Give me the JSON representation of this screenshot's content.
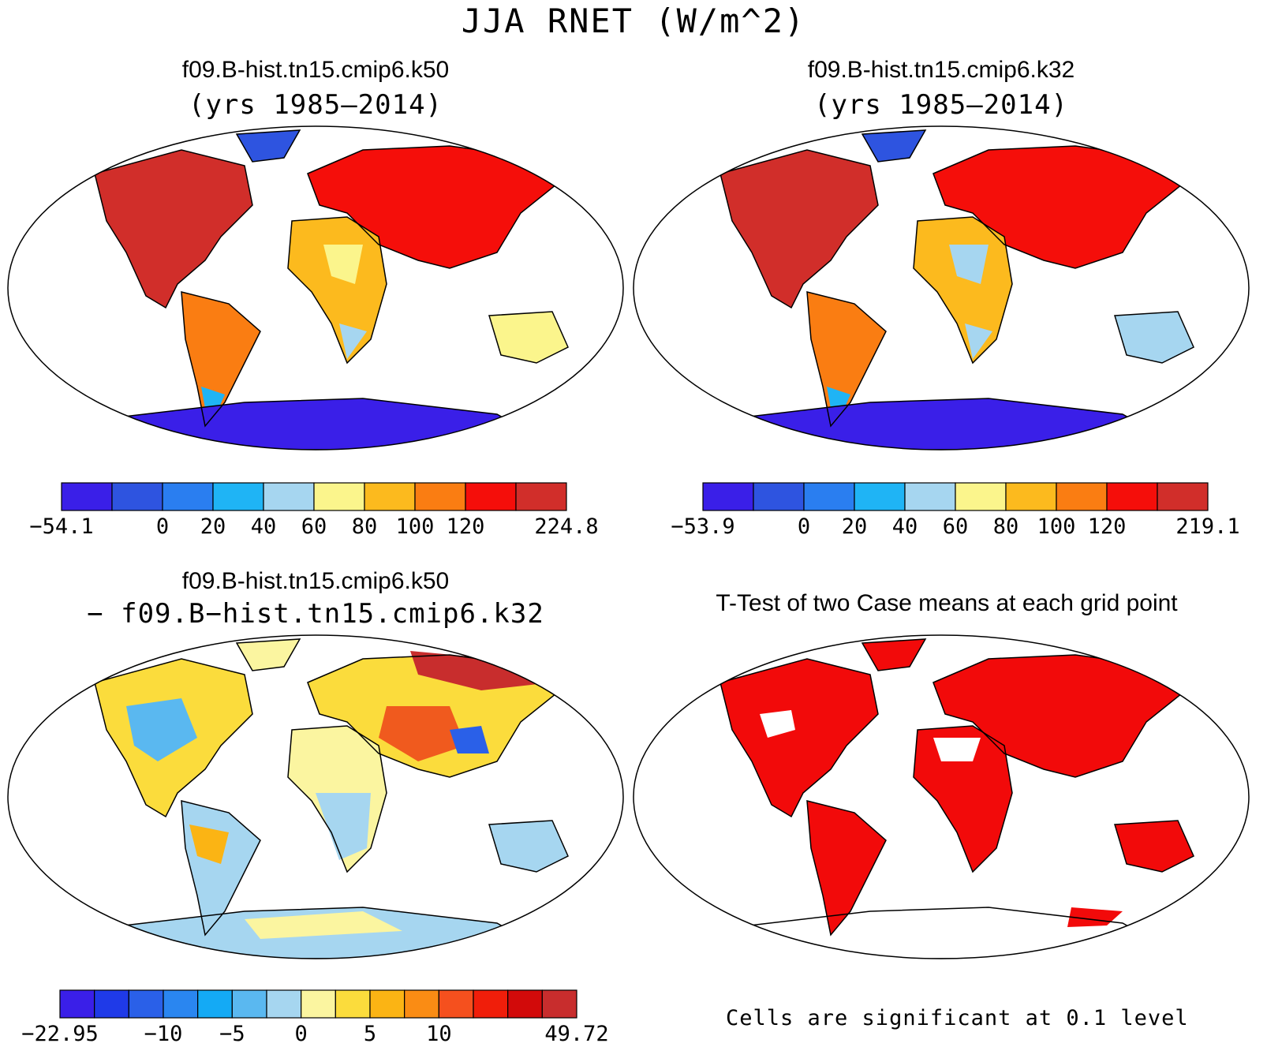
{
  "page_title": "JJA RNET (W/m^2)",
  "colors": {
    "case_scale": [
      "#3a1fe8",
      "#2e54e0",
      "#2a7ef0",
      "#1fb4f5",
      "#a6d6f0",
      "#fbf58c",
      "#fcba1e",
      "#fa7d12",
      "#f50e0a",
      "#d12e2a"
    ],
    "diff_scale": [
      "#3a1fe8",
      "#1f3ae8",
      "#2a60e8",
      "#2a86f0",
      "#14aaf5",
      "#5ab8f0",
      "#a6d6f0",
      "#fbf5a0",
      "#fbdc3c",
      "#fbb414",
      "#fa8c14",
      "#f5501e",
      "#f01e0a",
      "#d20a0a",
      "#c82d2d"
    ],
    "signif": "#f20a0a"
  },
  "panels": {
    "top_left": {
      "title": "f09.B-hist.tn15.cmip6.k50",
      "subtitle": "(yrs 1985–2014)",
      "colorbar_labels": [
        "−54.1",
        "0",
        "20",
        "40",
        "60",
        "80",
        "100",
        "120",
        "224.8"
      ]
    },
    "top_right": {
      "title": "f09.B-hist.tn15.cmip6.k32",
      "subtitle": "(yrs 1985–2014)",
      "colorbar_labels": [
        "−53.9",
        "0",
        "20",
        "40",
        "60",
        "80",
        "100",
        "120",
        "219.1"
      ]
    },
    "bottom_left": {
      "title": "f09.B-hist.tn15.cmip6.k50",
      "subtitle": "− f09.B−hist.tn15.cmip6.k32",
      "colorbar_labels": [
        "−22.95",
        "−10",
        "−5",
        "0",
        "5",
        "10",
        "49.72"
      ]
    },
    "bottom_right": {
      "title": "T-Test of two Case means at each grid point",
      "footnote": "Cells are significant at 0.1 level"
    }
  },
  "chart_data": [
    {
      "type": "heatmap",
      "title": "f09.B-hist.tn15.cmip6.k50",
      "subtitle": "(yrs 1985–2014)",
      "variable": "JJA RNET",
      "units": "W/m^2",
      "projection": "Robinson",
      "colorbar": {
        "levels": [
          0,
          20,
          40,
          60,
          80,
          100,
          120
        ],
        "min": -54.1,
        "max": 224.8,
        "bins": 10
      }
    },
    {
      "type": "heatmap",
      "title": "f09.B-hist.tn15.cmip6.k32",
      "subtitle": "(yrs 1985–2014)",
      "variable": "JJA RNET",
      "units": "W/m^2",
      "projection": "Robinson",
      "colorbar": {
        "levels": [
          0,
          20,
          40,
          60,
          80,
          100,
          120
        ],
        "min": -53.9,
        "max": 219.1,
        "bins": 10
      }
    },
    {
      "type": "heatmap",
      "title": "f09.B-hist.tn15.cmip6.k50",
      "subtitle": "− f09.B−hist.tn15.cmip6.k32",
      "projection": "Robinson",
      "colorbar": {
        "levels": [
          -10,
          -5,
          0,
          5,
          10
        ],
        "min": -22.95,
        "max": 49.72,
        "bins": 15
      }
    },
    {
      "type": "heatmap",
      "title": "T-Test of two Case means at each grid point",
      "projection": "Robinson",
      "note": "Cells are significant at 0.1 level"
    }
  ]
}
